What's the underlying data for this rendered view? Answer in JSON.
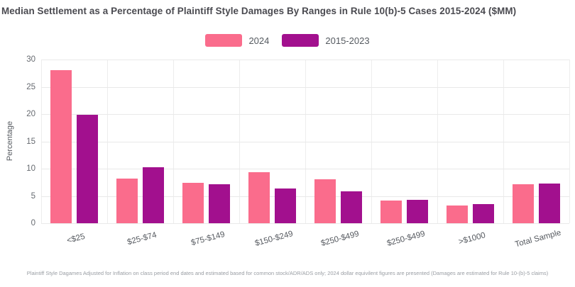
{
  "title": "Median Settlement as a Percentage of Plaintiff Style Damages By Ranges in Rule 10(b)-5 Cases 2015-2024 ($MM)",
  "footer": "Plaintiff Style Dagames Adjusted for Inflation on class period end dates and estimated based for common stock/ADR/ADS only; 2024 dollar equivilent figures are presented (Damages are estimated for Rule 10-(b)-5 claims)",
  "colors": {
    "series_2024": "#FA6C8C",
    "series_2015_2023": "#A2108E",
    "grid": "#e9e9e9",
    "title_text": "#4a4a50",
    "axis_text": "#55595f",
    "footer_text": "#999da3",
    "background": "#ffffff"
  },
  "chart_data": {
    "type": "bar",
    "title": "Median Settlement as a Percentage of Plaintiff Style Damages By Ranges in Rule 10(b)-5 Cases 2015-2024 ($MM)",
    "categories": [
      "<$25",
      "$25-$74",
      "$75-$149",
      "$150-$249",
      "$250-$499",
      "$250-$499",
      ">$1000",
      "Total Sample"
    ],
    "series": [
      {
        "name": "2024",
        "color": "#FA6C8C",
        "values": [
          28.1,
          8.2,
          7.4,
          9.3,
          8.0,
          4.1,
          3.3,
          7.2
        ]
      },
      {
        "name": "2015-2023",
        "color": "#A2108E",
        "values": [
          19.9,
          10.2,
          7.2,
          6.3,
          5.8,
          4.3,
          3.5,
          7.3
        ]
      }
    ],
    "xlabel": "",
    "ylabel": "Percentage",
    "ylim": [
      0,
      30
    ],
    "ytick_step": 5,
    "yticks": [
      0,
      5,
      10,
      15,
      20,
      25,
      30
    ],
    "grid": true,
    "legend_position": "top-center"
  }
}
